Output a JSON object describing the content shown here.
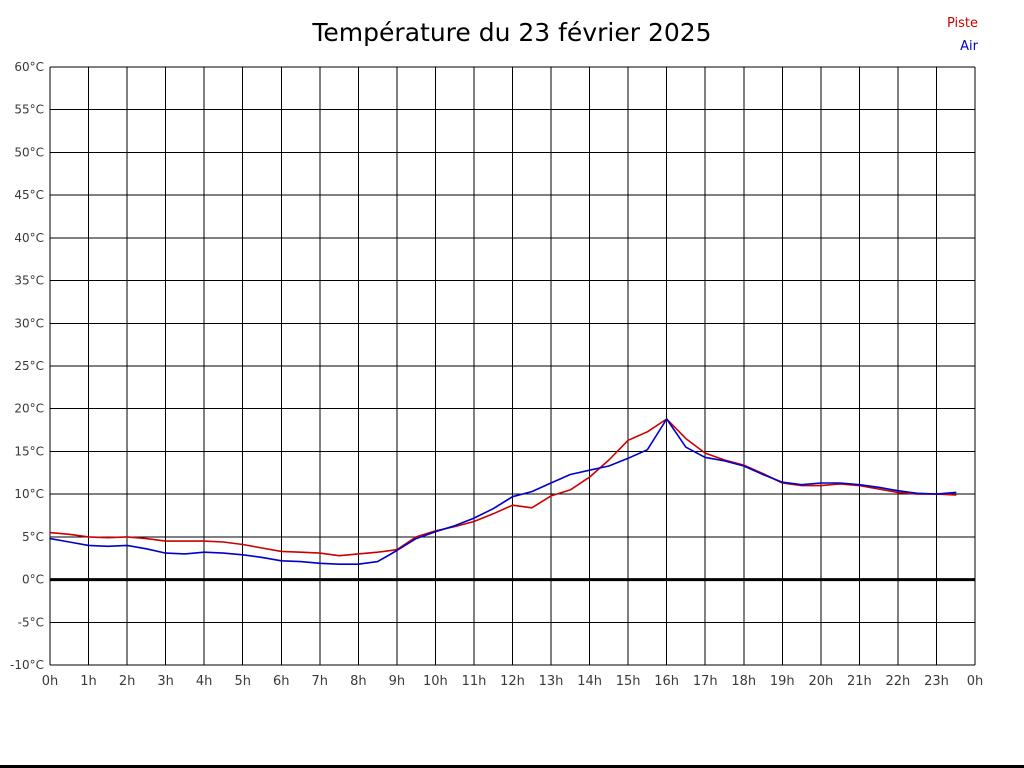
{
  "chart_data": {
    "type": "line",
    "title": "Température du 23 février 2025",
    "xlabel": "",
    "ylabel": "",
    "xlim": [
      0,
      24
    ],
    "ylim": [
      -10,
      60
    ],
    "y_tick_step": 5,
    "grid": true,
    "zero_line_value": 0,
    "legend_position": "top-right",
    "y_tick_labels": [
      "60°C",
      "55°C",
      "50°C",
      "45°C",
      "40°C",
      "35°C",
      "30°C",
      "25°C",
      "20°C",
      "15°C",
      "10°C",
      "5°C",
      "0°C",
      "-5°C",
      "-10°C"
    ],
    "x_tick_labels": [
      "0h",
      "1h",
      "2h",
      "3h",
      "4h",
      "5h",
      "6h",
      "7h",
      "8h",
      "9h",
      "10h",
      "11h",
      "12h",
      "13h",
      "14h",
      "15h",
      "16h",
      "17h",
      "18h",
      "19h",
      "20h",
      "21h",
      "22h",
      "23h",
      "0h"
    ],
    "x": [
      0,
      0.5,
      1,
      1.5,
      2,
      2.5,
      3,
      3.5,
      4,
      4.5,
      5,
      5.5,
      6,
      6.5,
      7,
      7.5,
      8,
      8.5,
      9,
      9.5,
      10,
      10.5,
      11,
      11.5,
      12,
      12.5,
      13,
      13.5,
      14,
      14.5,
      15,
      15.5,
      16,
      16.5,
      17,
      17.5,
      18,
      18.5,
      19,
      19.5,
      20,
      20.5,
      21,
      21.5,
      22,
      22.5,
      23,
      23.5
    ],
    "series": [
      {
        "name": "Piste",
        "color": "#cc0000",
        "values": [
          5.5,
          5.3,
          5.0,
          4.9,
          5.0,
          4.8,
          4.5,
          4.5,
          4.5,
          4.4,
          4.1,
          3.7,
          3.3,
          3.2,
          3.1,
          2.8,
          3.0,
          3.2,
          3.5,
          5.0,
          5.7,
          6.2,
          6.8,
          7.7,
          8.7,
          8.4,
          9.8,
          10.5,
          12.0,
          14.0,
          16.3,
          17.3,
          18.8,
          16.5,
          14.8,
          14.0,
          13.4,
          12.4,
          11.3,
          11.0,
          11.0,
          11.2,
          11.0,
          10.6,
          10.2,
          10.0,
          10.0,
          9.9
        ]
      },
      {
        "name": "Air",
        "color": "#0000cc",
        "values": [
          4.8,
          4.4,
          4.0,
          3.9,
          4.0,
          3.6,
          3.1,
          3.0,
          3.2,
          3.1,
          2.9,
          2.6,
          2.2,
          2.1,
          1.9,
          1.8,
          1.8,
          2.1,
          3.4,
          4.8,
          5.6,
          6.3,
          7.2,
          8.3,
          9.7,
          10.3,
          11.3,
          12.3,
          12.8,
          13.3,
          14.2,
          15.2,
          18.8,
          15.5,
          14.3,
          13.9,
          13.3,
          12.3,
          11.4,
          11.1,
          11.3,
          11.3,
          11.1,
          10.8,
          10.4,
          10.1,
          10.0,
          10.2
        ]
      }
    ]
  }
}
